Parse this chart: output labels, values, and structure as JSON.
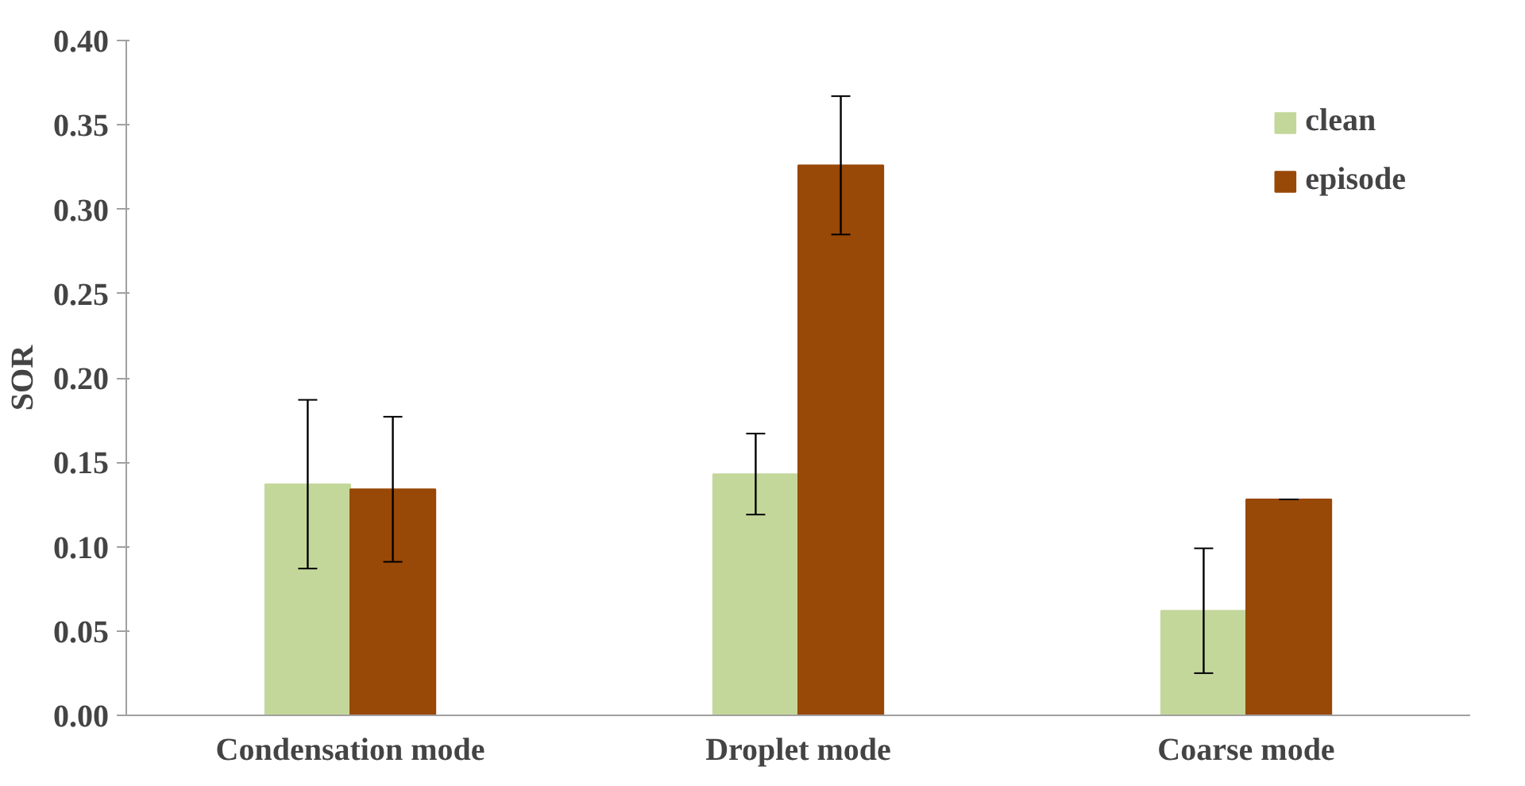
{
  "chart_data": {
    "type": "bar",
    "ylabel": "SOR",
    "categories": [
      "Condensation mode",
      "Droplet mode",
      "Coarse mode"
    ],
    "series": [
      {
        "name": "clean",
        "color": "#c4d79b",
        "values": [
          0.137,
          0.143,
          0.062
        ],
        "errors": [
          0.05,
          0.024,
          0.037
        ]
      },
      {
        "name": "episode",
        "color": "#984807",
        "values": [
          0.134,
          0.326,
          0.128
        ],
        "errors": [
          0.043,
          0.041,
          0.0
        ]
      }
    ],
    "ylim": [
      0,
      0.4
    ],
    "yticks": [
      {
        "value": 0,
        "label": "0.00"
      },
      {
        "value": 0.05,
        "label": "0.05"
      },
      {
        "value": 0.1,
        "label": "0.10"
      },
      {
        "value": 0.15,
        "label": "0.15"
      },
      {
        "value": 0.2,
        "label": "0.20"
      },
      {
        "value": 0.25,
        "label": "0.25"
      },
      {
        "value": 0.3,
        "label": "0.30"
      },
      {
        "value": 0.35,
        "label": "0.35"
      },
      {
        "value": 0.4,
        "label": "0.40"
      }
    ],
    "grid": false,
    "legend": "top right"
  }
}
